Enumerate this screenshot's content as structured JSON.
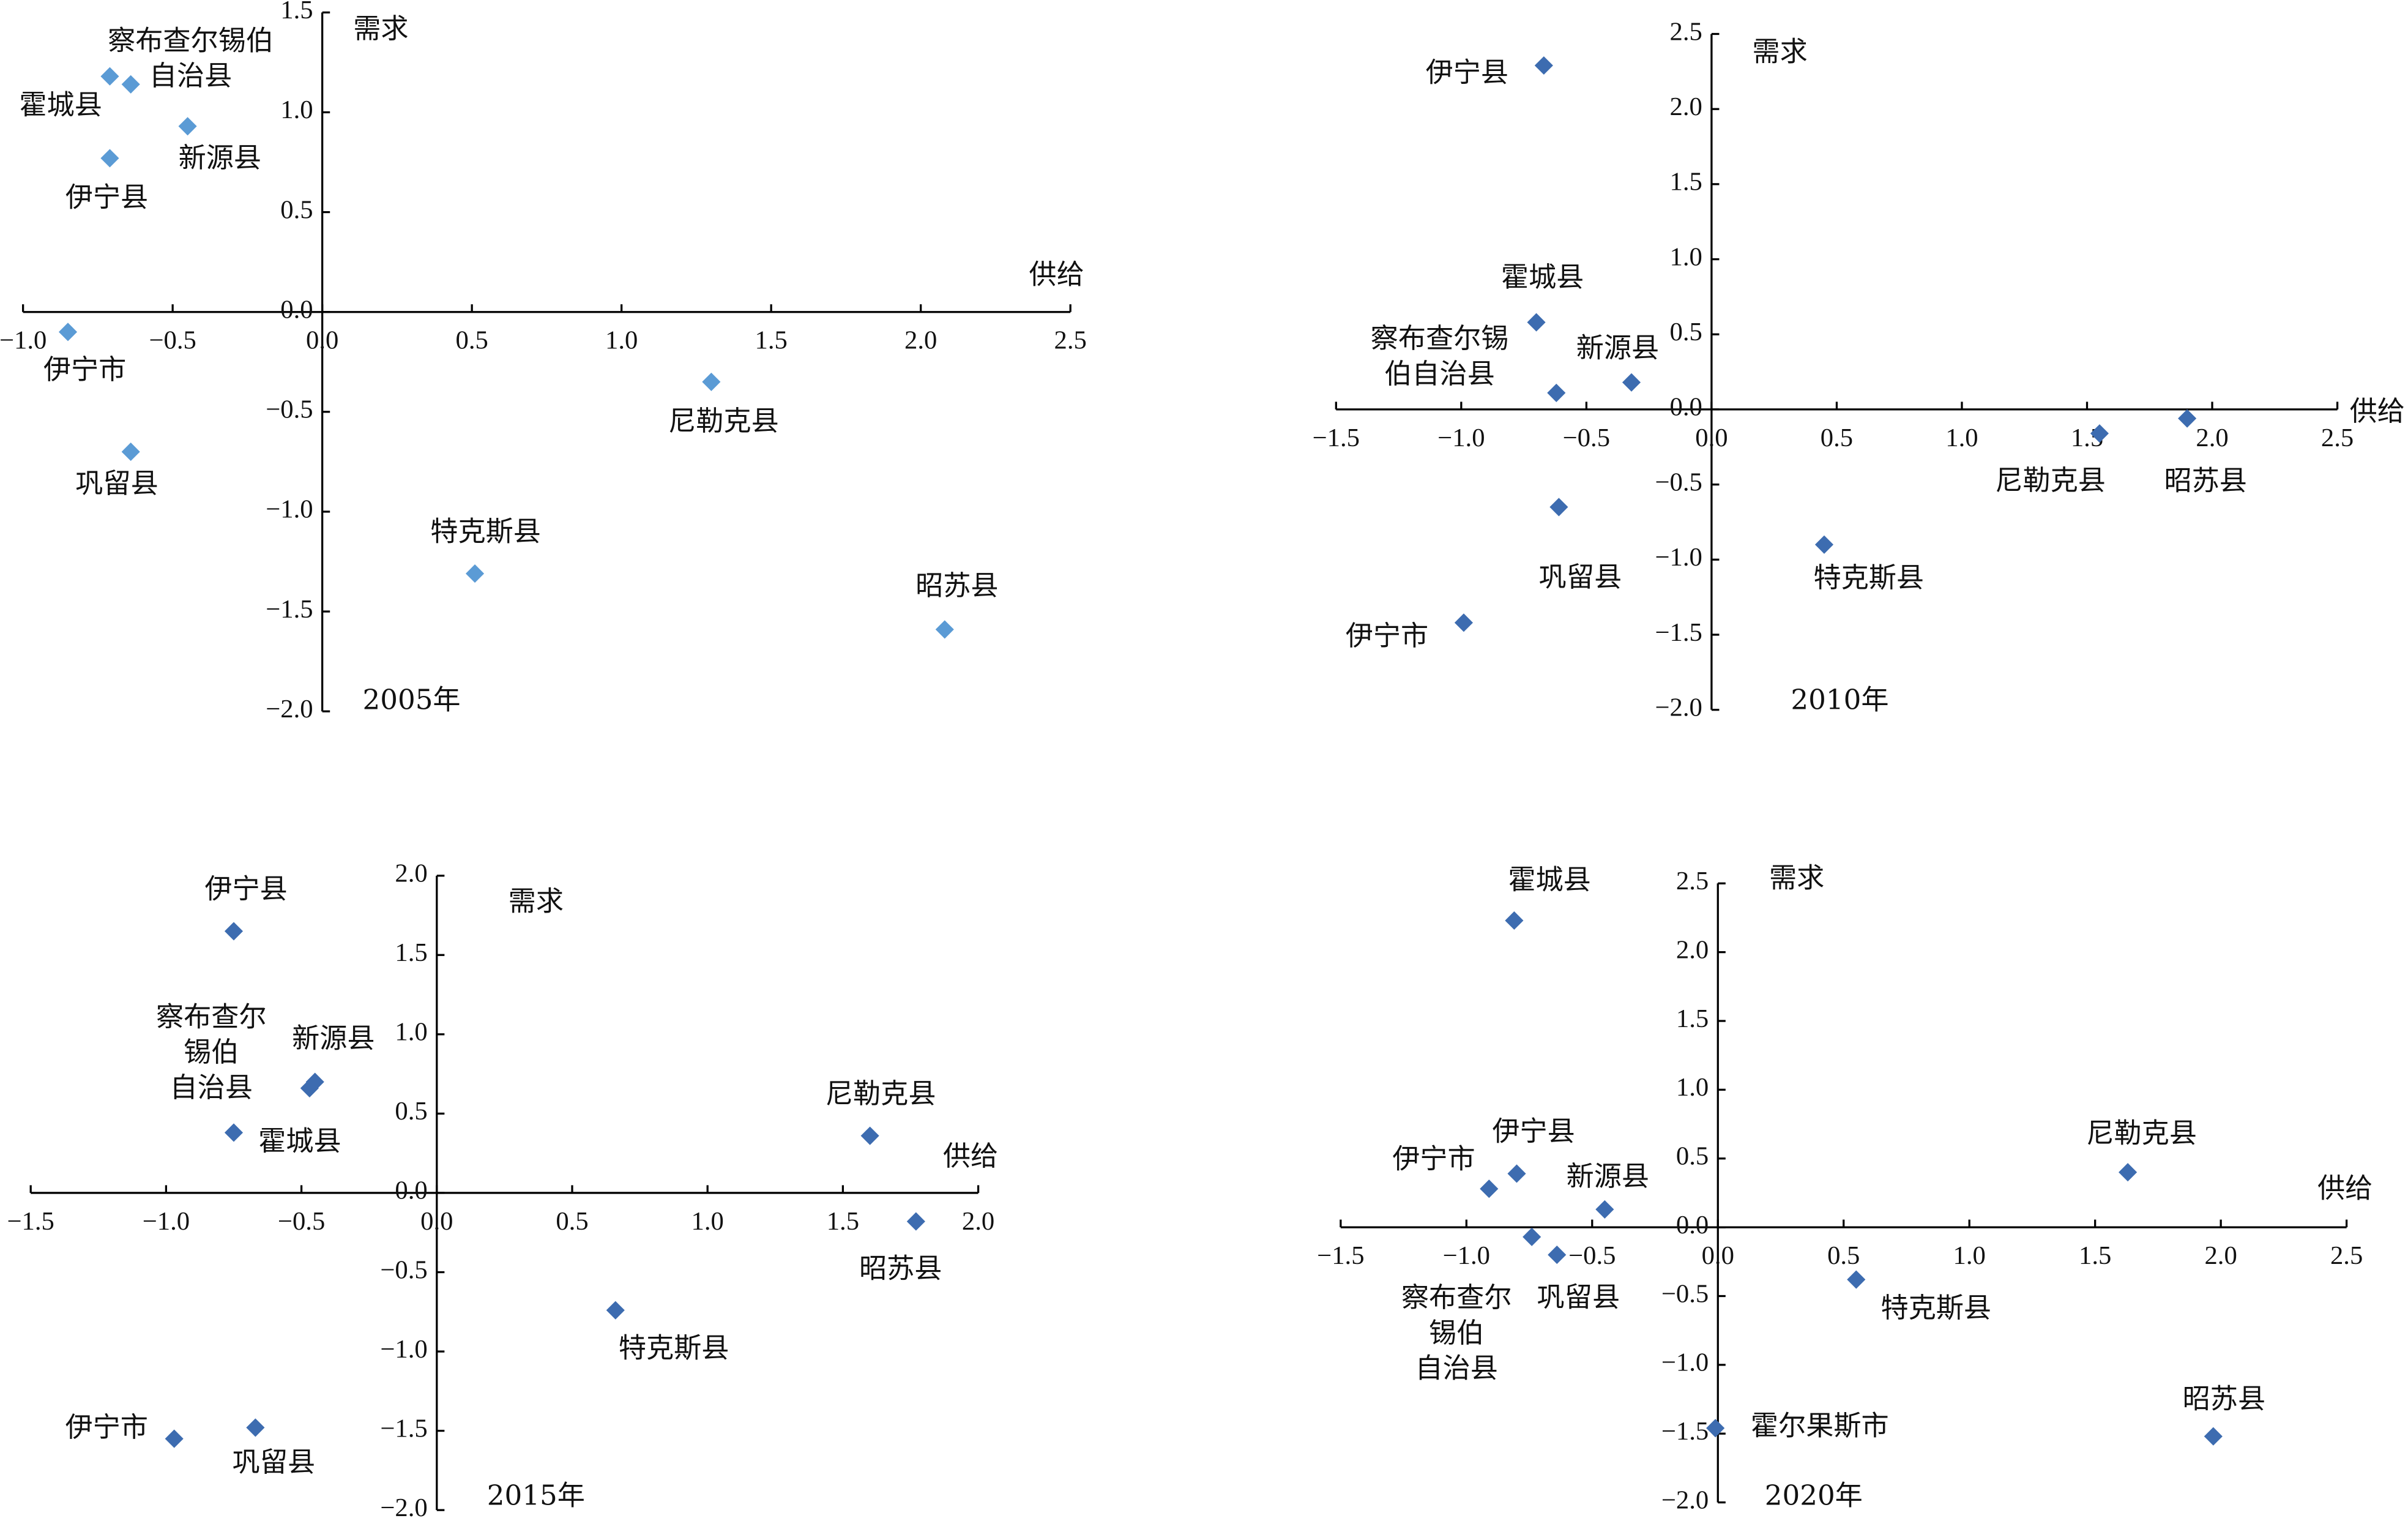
{
  "chart_data": [
    {
      "type": "scatter",
      "annotation": "2005年",
      "xlabel": "供给",
      "ylabel": "需求",
      "color": "#5b9bd5",
      "xlim": [
        -1.0,
        2.5
      ],
      "ylim": [
        -2.0,
        1.5
      ],
      "xticks": [
        {
          "value": -1.0,
          "label": "−1.0"
        },
        {
          "value": -0.5,
          "label": "−0.5"
        },
        {
          "value": 0,
          "label": "0.0"
        },
        0.5,
        {
          "value": 1.0,
          "label": "1.0"
        },
        1.5,
        {
          "value": 2.0,
          "label": "2.0"
        },
        2.5
      ],
      "yticks": [
        {
          "value": -2.0,
          "label": "−2.0"
        },
        {
          "value": -1.5,
          "label": "−1.5"
        },
        {
          "value": -1.0,
          "label": "−1.0"
        },
        {
          "value": -0.5,
          "label": "−0.5"
        },
        {
          "value": 0,
          "label": "0.0"
        },
        0.5,
        {
          "value": 1.0,
          "label": "1.0"
        },
        1.5
      ],
      "labels": [
        [
          "察布查尔锡伯",
          "自治县"
        ],
        "霍城县",
        "新源县",
        "伊宁县",
        "伊宁市",
        "巩留县",
        "尼勒克县",
        "特克斯县",
        "昭苏县"
      ],
      "x": [
        -0.64,
        -0.71,
        -0.45,
        -0.71,
        -0.85,
        -0.64,
        1.3,
        0.51,
        2.08
      ],
      "y": [
        1.14,
        1.18,
        0.93,
        0.77,
        -0.1,
        -0.7,
        -0.35,
        -1.31,
        -1.59
      ]
    },
    {
      "type": "scatter",
      "annotation": "2010年",
      "xlabel": "供给",
      "ylabel": "需求",
      "color": "#3d6cb0",
      "xlim": [
        -1.5,
        2.5
      ],
      "ylim": [
        -2.0,
        2.5
      ],
      "xticks": [
        {
          "value": -1.5,
          "label": "−1.5"
        },
        {
          "value": -1.0,
          "label": "−1.0"
        },
        {
          "value": -0.5,
          "label": "−0.5"
        },
        {
          "value": 0,
          "label": "0.0"
        },
        0.5,
        {
          "value": 1.0,
          "label": "1.0"
        },
        1.5,
        {
          "value": 2.0,
          "label": "2.0"
        },
        2.5
      ],
      "yticks": [
        {
          "value": -2.0,
          "label": "−2.0"
        },
        {
          "value": -1.5,
          "label": "−1.5"
        },
        {
          "value": -1.0,
          "label": "−1.0"
        },
        {
          "value": -0.5,
          "label": "−0.5"
        },
        {
          "value": 0,
          "label": "0.0"
        },
        0.5,
        {
          "value": 1.0,
          "label": "1.0"
        },
        1.5,
        {
          "value": 2.0,
          "label": "2.0"
        },
        2.5
      ],
      "labels": [
        "伊宁县",
        "霍城县",
        [
          "察布查尔锡",
          "伯自治县"
        ],
        "新源县",
        "巩留县",
        "伊宁市",
        "特克斯县",
        "尼勒克县",
        "昭苏县"
      ],
      "x": [
        -0.67,
        -0.7,
        -0.62,
        -0.32,
        -0.61,
        -0.99,
        0.45,
        1.55,
        1.9
      ],
      "y": [
        2.29,
        0.58,
        0.11,
        0.18,
        -0.65,
        -1.42,
        -0.9,
        -0.16,
        -0.06
      ]
    },
    {
      "type": "scatter",
      "annotation": "2015年",
      "xlabel": "供给",
      "ylabel": "需求",
      "color": "#3d6cb0",
      "xlim": [
        -1.5,
        2.0
      ],
      "ylim": [
        -2.0,
        2.0
      ],
      "xticks": [
        {
          "value": -1.5,
          "label": "−1.5"
        },
        {
          "value": -1.0,
          "label": "−1.0"
        },
        {
          "value": -0.5,
          "label": "−0.5"
        },
        {
          "value": 0,
          "label": "0.0"
        },
        0.5,
        {
          "value": 1.0,
          "label": "1.0"
        },
        1.5,
        {
          "value": 2.0,
          "label": "2.0"
        }
      ],
      "yticks": [
        {
          "value": -2.0,
          "label": "−2.0"
        },
        {
          "value": -1.5,
          "label": "−1.5"
        },
        {
          "value": -1.0,
          "label": "−1.0"
        },
        {
          "value": -0.5,
          "label": "−0.5"
        },
        {
          "value": 0,
          "label": "0.0"
        },
        0.5,
        {
          "value": 1.0,
          "label": "1.0"
        },
        1.5,
        {
          "value": 2.0,
          "label": "2.0"
        }
      ],
      "labels": [
        "伊宁县",
        [
          "察布查尔",
          "锡伯",
          "自治县"
        ],
        "新源县",
        "霍城县",
        "尼勒克县",
        "昭苏县",
        "特克斯县",
        "伊宁市",
        "巩留县"
      ],
      "x": [
        -0.75,
        -0.47,
        -0.45,
        -0.75,
        1.6,
        1.77,
        0.66,
        -0.97,
        -0.67
      ],
      "y": [
        1.65,
        0.66,
        0.7,
        0.38,
        0.36,
        -0.18,
        -0.74,
        -1.55,
        -1.48
      ]
    },
    {
      "type": "scatter",
      "annotation": "2020年",
      "xlabel": "供给",
      "ylabel": "需求",
      "color": "#3d6cb0",
      "xlim": [
        -1.5,
        2.5
      ],
      "ylim": [
        -2.0,
        2.5
      ],
      "xticks": [
        {
          "value": -1.5,
          "label": "−1.5"
        },
        {
          "value": -1.0,
          "label": "−1.0"
        },
        {
          "value": -0.5,
          "label": "−0.5"
        },
        {
          "value": 0,
          "label": "0.0"
        },
        0.5,
        {
          "value": 1.0,
          "label": "1.0"
        },
        1.5,
        {
          "value": 2.0,
          "label": "2.0"
        },
        2.5
      ],
      "yticks": [
        {
          "value": -2.0,
          "label": "−2.0"
        },
        {
          "value": -1.5,
          "label": "−1.5"
        },
        {
          "value": -1.0,
          "label": "−1.0"
        },
        {
          "value": -0.5,
          "label": "−0.5"
        },
        {
          "value": 0,
          "label": "0.0"
        },
        0.5,
        {
          "value": 1.0,
          "label": "1.0"
        },
        1.5,
        {
          "value": 2.0,
          "label": "2.0"
        },
        2.5
      ],
      "labels": [
        "霍城县",
        "伊宁县",
        "伊宁市",
        "新源县",
        [
          "察布查尔",
          "锡伯",
          "自治县"
        ],
        "巩留县",
        "特克斯县",
        "尼勒克县",
        "霍尔果斯市",
        "昭苏县"
      ],
      "x": [
        -0.81,
        -0.8,
        -0.91,
        -0.45,
        -0.74,
        -0.64,
        0.55,
        1.63,
        -0.01,
        1.97
      ],
      "y": [
        2.23,
        0.39,
        0.28,
        0.13,
        -0.07,
        -0.2,
        -0.38,
        0.4,
        -1.46,
        -1.52
      ]
    }
  ]
}
